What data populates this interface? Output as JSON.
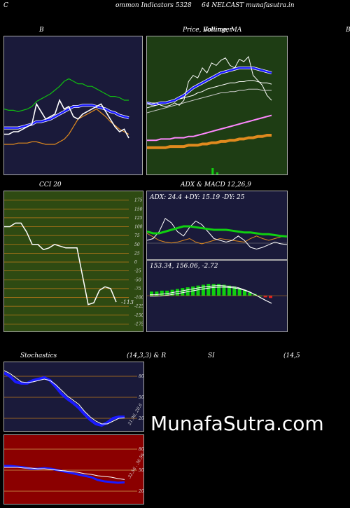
{
  "header": {
    "left": "C",
    "title": "ommon  Indicators 5328",
    "title2": "64  NELCAST munafasutra.in"
  },
  "panels": {
    "b_title": "B",
    "price_title": "Price,  Volume,  MA",
    "price_overlay": "Bollinger",
    "edge_label": "B",
    "cci_title": "CCI 20",
    "adx_title": "ADX  & MACD 12,26,9",
    "adx_values": "ADX: 24.4   +DY: 15.19 -DY: 25",
    "macd_values": "153.34,  156.06,  -2.72",
    "stoch_title": "Stochastics",
    "stoch_params": "(14,3,3) & R",
    "rsi_title": "SI",
    "rsi_params": "(14,5",
    "cci_value_label": "-113",
    "stoch_value_label": "21.96, 20.6",
    "rsi_value_label": "32.56 . 36.56"
  },
  "watermark": "MunafaSutra.com",
  "colors": {
    "navy": "#1a1a3a",
    "green_bg": "#1e3d14",
    "cci_bg": "#2e4a12",
    "rsi_bg": "#8b0000",
    "blue": "#1a1aff",
    "orange": "#e08a1e",
    "green_line": "#10d010"
  },
  "chart_data": [
    {
      "type": "line",
      "name": "bollinger",
      "ylim": [
        0,
        100
      ],
      "series": [
        {
          "name": "price",
          "values": [
            28,
            28,
            30,
            30,
            32,
            34,
            36,
            52,
            46,
            40,
            42,
            44,
            55,
            48,
            50,
            42,
            40,
            44,
            46,
            48,
            50,
            52,
            46,
            40,
            34,
            30,
            32,
            25
          ]
        },
        {
          "name": "upper",
          "values": [
            48,
            47,
            47,
            46,
            47,
            48,
            50,
            54,
            56,
            58,
            60,
            63,
            66,
            70,
            72,
            70,
            68,
            68,
            66,
            66,
            64,
            62,
            60,
            58,
            58,
            57,
            55,
            55
          ]
        },
        {
          "name": "middle",
          "values": [
            33,
            33,
            33,
            33,
            34,
            35,
            36,
            38,
            38,
            39,
            40,
            42,
            44,
            46,
            48,
            50,
            50,
            51,
            51,
            51,
            50,
            49,
            48,
            46,
            45,
            43,
            42,
            41
          ]
        },
        {
          "name": "lower",
          "values": [
            20,
            20,
            20,
            21,
            21,
            21,
            22,
            22,
            21,
            20,
            20,
            20,
            22,
            24,
            28,
            34,
            40,
            42,
            44,
            46,
            48,
            45,
            42,
            38,
            35,
            32,
            30,
            28
          ]
        }
      ]
    },
    {
      "type": "line",
      "name": "price_ma",
      "ylim": [
        0,
        100
      ],
      "series": [
        {
          "name": "price",
          "values": [
            58,
            57,
            58,
            56,
            55,
            56,
            58,
            56,
            60,
            75,
            80,
            78,
            86,
            82,
            90,
            88,
            92,
            94,
            88,
            86,
            93,
            91,
            95,
            80,
            76,
            72,
            64,
            60
          ]
        },
        {
          "name": "ma_blue",
          "values": [
            58,
            57,
            57,
            58,
            58,
            59,
            60,
            62,
            64,
            67,
            70,
            72,
            74,
            76,
            78,
            80,
            82,
            83,
            84,
            85,
            86,
            86,
            86,
            86,
            85,
            84,
            83,
            82
          ]
        },
        {
          "name": "ma_white",
          "values": [
            54,
            55,
            56,
            57,
            58,
            59,
            60,
            61,
            62,
            63,
            64,
            66,
            67,
            69,
            70,
            71,
            72,
            73,
            74,
            74,
            75,
            75,
            76,
            76,
            75,
            74,
            74,
            73
          ]
        },
        {
          "name": "ma_slow",
          "values": [
            50,
            51,
            52,
            53,
            54,
            55,
            56,
            57,
            58,
            59,
            60,
            61,
            62,
            63,
            64,
            65,
            66,
            66,
            67,
            67,
            68,
            68,
            69,
            69,
            69,
            68,
            68,
            68
          ]
        },
        {
          "name": "ma_pink",
          "values": [
            28,
            28,
            28,
            29,
            29,
            29,
            30,
            30,
            30,
            31,
            31,
            32,
            33,
            34,
            35,
            36,
            37,
            38,
            39,
            40,
            41,
            42,
            43,
            44,
            45,
            46,
            47,
            48
          ]
        },
        {
          "name": "ma_orange",
          "values": [
            22,
            22,
            22,
            22,
            22,
            23,
            23,
            23,
            23,
            24,
            24,
            24,
            25,
            25,
            26,
            26,
            27,
            27,
            28,
            28,
            29,
            29,
            30,
            30,
            31,
            31,
            32,
            32
          ]
        }
      ]
    },
    {
      "type": "line",
      "name": "cci",
      "ylim": [
        -200,
        200
      ],
      "y_ticks": [
        175,
        150,
        125,
        100,
        75,
        50,
        25,
        0,
        -25,
        -50,
        -75,
        -100,
        -125,
        -150,
        -175
      ],
      "series": [
        {
          "name": "cci",
          "values": [
            100,
            100,
            110,
            110,
            85,
            50,
            50,
            35,
            40,
            50,
            45,
            40,
            40,
            40,
            -40,
            -120,
            -115,
            -80,
            -70,
            -75,
            -113
          ]
        }
      ]
    },
    {
      "type": "line",
      "name": "adx",
      "ylim": [
        0,
        60
      ],
      "series": [
        {
          "name": "adx",
          "values": [
            30,
            28,
            28,
            30,
            32,
            34,
            36,
            36,
            35,
            34,
            33,
            32,
            32,
            32,
            31,
            30,
            29,
            29,
            28,
            27,
            27,
            26,
            25,
            24.4
          ]
        },
        {
          "name": "plus_dy",
          "values": [
            20,
            22,
            30,
            45,
            40,
            30,
            25,
            35,
            42,
            38,
            30,
            22,
            20,
            18,
            20,
            25,
            20,
            12,
            10,
            12,
            15,
            18,
            16,
            15.19
          ]
        },
        {
          "name": "minus_dy",
          "values": [
            28,
            24,
            20,
            18,
            17,
            18,
            20,
            22,
            18,
            16,
            18,
            20,
            22,
            21,
            20,
            19,
            18,
            22,
            25,
            22,
            20,
            22,
            24,
            25
          ]
        }
      ]
    },
    {
      "type": "bar",
      "name": "macd",
      "values_label": "153.34, 156.06, -2.72",
      "series": [
        {
          "name": "macd",
          "values": [
            20,
            20,
            21,
            22,
            24,
            26,
            28,
            30,
            32,
            34,
            36,
            37,
            38,
            38,
            37,
            36,
            34,
            30,
            26,
            20,
            14,
            8,
            3,
            153.34
          ]
        },
        {
          "name": "histogram",
          "values": [
            5,
            5,
            6,
            6,
            7,
            8,
            9,
            10,
            11,
            12,
            13,
            14,
            14,
            14,
            13,
            12,
            11,
            9,
            7,
            4,
            2,
            0,
            -2,
            -2.72
          ]
        }
      ]
    },
    {
      "type": "line",
      "name": "stochastics",
      "ylim": [
        0,
        100
      ],
      "y_ticks": [
        80,
        50,
        20
      ],
      "series": [
        {
          "name": "k",
          "values": [
            85,
            80,
            72,
            70,
            70,
            74,
            76,
            78,
            74,
            65,
            55,
            48,
            42,
            35,
            26,
            18,
            12,
            10,
            14,
            20,
            22,
            21.96
          ]
        },
        {
          "name": "d",
          "values": [
            88,
            84,
            78,
            72,
            71,
            72,
            74,
            76,
            74,
            68,
            60,
            52,
            46,
            40,
            30,
            22,
            16,
            12,
            12,
            16,
            20,
            20.6
          ]
        }
      ]
    },
    {
      "type": "line",
      "name": "rsi",
      "ylim": [
        0,
        100
      ],
      "y_ticks": [
        80,
        50,
        20
      ],
      "series": [
        {
          "name": "rsi",
          "values": [
            56,
            56,
            55,
            54,
            52,
            52,
            53,
            52,
            50,
            48,
            46,
            44,
            42,
            40,
            36,
            34,
            33,
            32,
            32.56
          ]
        },
        {
          "name": "rsi_ma",
          "values": [
            54,
            54,
            54,
            53,
            53,
            52,
            52,
            51,
            50,
            49,
            48,
            47,
            45,
            44,
            42,
            41,
            40,
            38,
            36.56
          ]
        }
      ]
    }
  ]
}
